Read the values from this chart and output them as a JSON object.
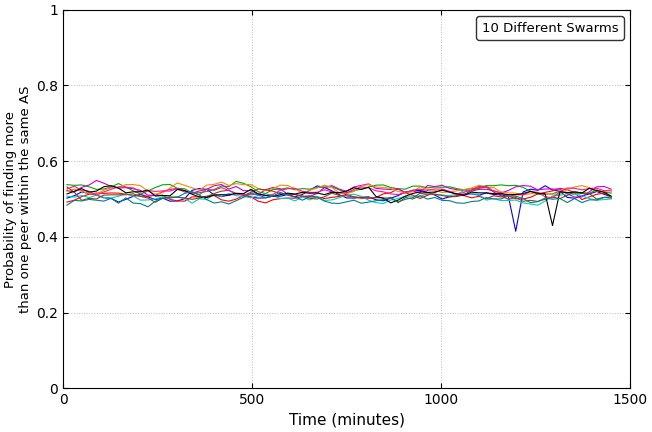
{
  "title": "",
  "xlabel": "Time (minutes)",
  "ylabel": "Probability of finding more\nthan one peer within the same AS",
  "xlim": [
    0,
    1500
  ],
  "ylim": [
    0,
    1
  ],
  "xticks": [
    0,
    500,
    1000,
    1500
  ],
  "yticks": [
    0,
    0.2,
    0.4,
    0.6,
    0.8,
    1.0
  ],
  "legend_label": "10 Different Swarms",
  "n_lines": 10,
  "n_points": 75,
  "seed": 42,
  "colors": [
    "#0000FF",
    "#FF0000",
    "#00AA00",
    "#CC00CC",
    "#00CCCC",
    "#FF8800",
    "#8B4513",
    "#FF1493",
    "#000000",
    "#008080"
  ],
  "base_mean": 0.515,
  "noise_scale": 0.014,
  "line_width": 0.8,
  "background_color": "#ffffff",
  "grid_color": "#aaaaaa",
  "dpi": 100
}
